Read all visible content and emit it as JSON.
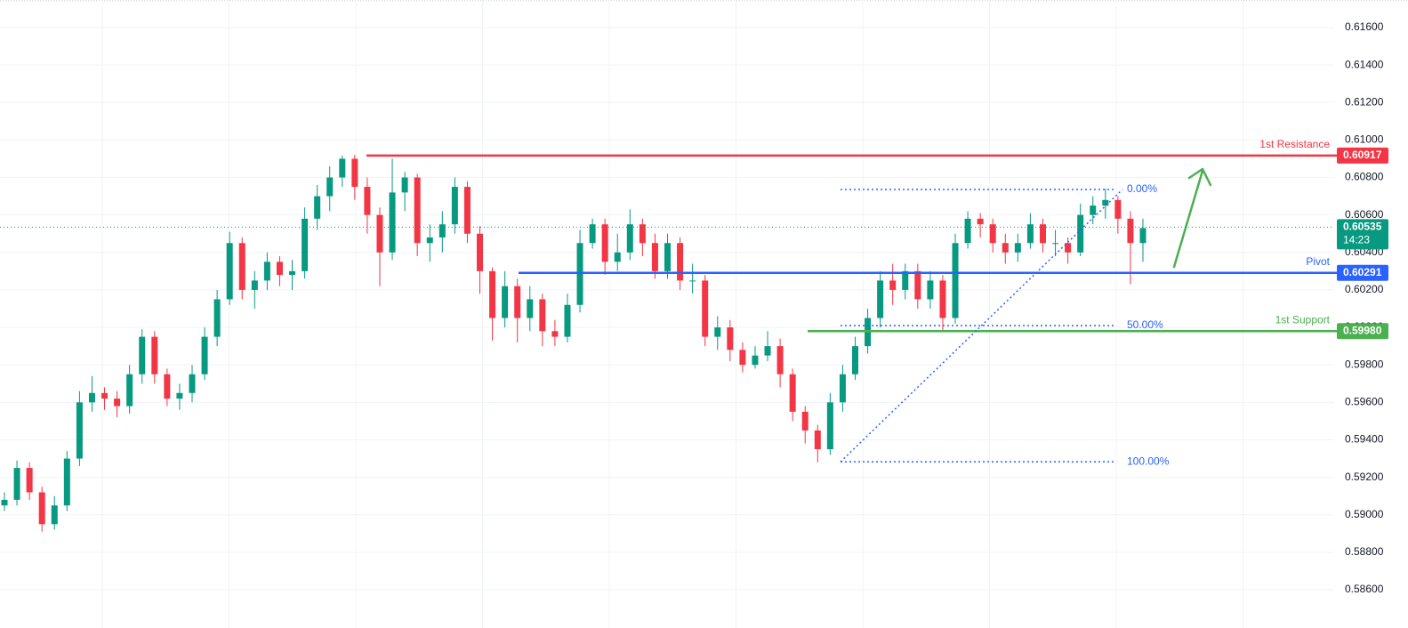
{
  "chart_data": {
    "type": "candlestick",
    "ylim": [
      0.58396,
      0.61747
    ],
    "yticks": [
      {
        "value": 0.616,
        "label": "0.61600"
      },
      {
        "value": 0.614,
        "label": "0.61400"
      },
      {
        "value": 0.612,
        "label": "0.61200"
      },
      {
        "value": 0.61,
        "label": "0.61000"
      },
      {
        "value": 0.608,
        "label": "0.60800"
      },
      {
        "value": 0.606,
        "label": "0.60600"
      },
      {
        "value": 0.604,
        "label": "0.60400"
      },
      {
        "value": 0.602,
        "label": "0.60200"
      },
      {
        "value": 0.6,
        "label": "0.60000"
      },
      {
        "value": 0.598,
        "label": "0.59800"
      },
      {
        "value": 0.596,
        "label": "0.59600"
      },
      {
        "value": 0.594,
        "label": "0.59400"
      },
      {
        "value": 0.592,
        "label": "0.59200"
      },
      {
        "value": 0.59,
        "label": "0.59000"
      },
      {
        "value": 0.588,
        "label": "0.58800"
      },
      {
        "value": 0.586,
        "label": "0.58600"
      }
    ],
    "grid": true,
    "up_color": "#089981",
    "down_color": "#f23645",
    "open": [
      0.5905,
      0.5908,
      0.5925,
      0.5912,
      0.5895,
      0.5905,
      0.593,
      0.596,
      0.5965,
      0.5962,
      0.5958,
      0.5975,
      0.5995,
      0.5975,
      0.5962,
      0.5965,
      0.5975,
      0.5995,
      0.6015,
      0.6045,
      0.602,
      0.6025,
      0.6035,
      0.6028,
      0.603,
      0.6058,
      0.607,
      0.608,
      0.609,
      0.6075,
      0.606,
      0.604,
      0.6072,
      0.608,
      0.6045,
      0.6048,
      0.6055,
      0.6075,
      0.605,
      0.603,
      0.6005,
      0.6022,
      0.6005,
      0.6015,
      0.5998,
      0.5995,
      0.6012,
      0.6045,
      0.6055,
      0.6035,
      0.604,
      0.6055,
      0.6045,
      0.603,
      0.6045,
      0.6025,
      0.6025,
      0.5995,
      0.6,
      0.5988,
      0.598,
      0.5985,
      0.599,
      0.5975,
      0.5955,
      0.5945,
      0.5935,
      0.596,
      0.5975,
      0.599,
      0.6005,
      0.6025,
      0.602,
      0.603,
      0.6015,
      0.6025,
      0.6005,
      0.6045,
      0.6058,
      0.6055,
      0.6045,
      0.604,
      0.6045,
      0.6055,
      0.6045,
      0.6045,
      0.604,
      0.606,
      0.6065,
      0.6068,
      0.6058,
      0.6045
    ],
    "high": [
      0.5912,
      0.5929,
      0.5928,
      0.5915,
      0.591,
      0.5934,
      0.5966,
      0.5974,
      0.5968,
      0.5966,
      0.598,
      0.5999,
      0.5998,
      0.5978,
      0.597,
      0.598,
      0.6,
      0.602,
      0.6051,
      0.6048,
      0.603,
      0.604,
      0.6038,
      0.6036,
      0.6064,
      0.6076,
      0.6086,
      0.60917,
      0.6092,
      0.608,
      0.6064,
      0.609,
      0.6083,
      0.6082,
      0.6055,
      0.6062,
      0.608,
      0.6078,
      0.6054,
      0.6032,
      0.603,
      0.6026,
      0.6022,
      0.6018,
      0.6004,
      0.6018,
      0.6052,
      0.6058,
      0.6058,
      0.605,
      0.6063,
      0.6058,
      0.605,
      0.605,
      0.6048,
      0.6034,
      0.6028,
      0.6006,
      0.6004,
      0.5992,
      0.599,
      0.5998,
      0.5994,
      0.5978,
      0.5958,
      0.5948,
      0.5965,
      0.598,
      0.5995,
      0.601,
      0.603,
      0.6034,
      0.6034,
      0.6034,
      0.603,
      0.6028,
      0.605,
      0.6062,
      0.6061,
      0.6058,
      0.605,
      0.605,
      0.6061,
      0.6058,
      0.6052,
      0.6048,
      0.6066,
      0.607,
      0.6074,
      0.607,
      0.6062,
      0.6058
    ],
    "low": [
      0.5902,
      0.5905,
      0.5908,
      0.5891,
      0.5892,
      0.5902,
      0.5926,
      0.5955,
      0.5956,
      0.5952,
      0.5954,
      0.597,
      0.597,
      0.5958,
      0.5956,
      0.596,
      0.5972,
      0.599,
      0.6012,
      0.6015,
      0.601,
      0.602,
      0.6022,
      0.602,
      0.6026,
      0.6052,
      0.6062,
      0.6075,
      0.6068,
      0.605,
      0.6022,
      0.6036,
      0.6062,
      0.6038,
      0.6035,
      0.604,
      0.605,
      0.6045,
      0.6018,
      0.5993,
      0.6,
      0.5992,
      0.5998,
      0.599,
      0.599,
      0.5992,
      0.6008,
      0.6042,
      0.6028,
      0.603,
      0.6036,
      0.6038,
      0.6026,
      0.6026,
      0.602,
      0.6018,
      0.599,
      0.5988,
      0.5982,
      0.5976,
      0.5978,
      0.5982,
      0.5968,
      0.595,
      0.5938,
      0.5928,
      0.5932,
      0.5955,
      0.5972,
      0.5986,
      0.6,
      0.6012,
      0.6015,
      0.601,
      0.601,
      0.5998,
      0.6002,
      0.6042,
      0.6048,
      0.604,
      0.6034,
      0.6035,
      0.6042,
      0.604,
      0.6038,
      0.6034,
      0.6038,
      0.6055,
      0.6058,
      0.605,
      0.6023,
      0.6035
    ],
    "close": [
      0.5908,
      0.5925,
      0.5912,
      0.5895,
      0.5905,
      0.593,
      0.596,
      0.5965,
      0.5962,
      0.5958,
      0.5975,
      0.5995,
      0.5975,
      0.5962,
      0.5965,
      0.5975,
      0.5995,
      0.6015,
      0.6045,
      0.602,
      0.6025,
      0.6035,
      0.6028,
      0.603,
      0.6058,
      0.607,
      0.608,
      0.609,
      0.6075,
      0.606,
      0.604,
      0.6072,
      0.608,
      0.6045,
      0.6048,
      0.6055,
      0.6075,
      0.605,
      0.603,
      0.6005,
      0.6022,
      0.6005,
      0.6015,
      0.5998,
      0.5995,
      0.6012,
      0.6045,
      0.6055,
      0.6035,
      0.604,
      0.6055,
      0.6045,
      0.603,
      0.6045,
      0.6025,
      0.6025,
      0.5995,
      0.6,
      0.5988,
      0.598,
      0.5985,
      0.599,
      0.5975,
      0.5955,
      0.5945,
      0.5935,
      0.596,
      0.5975,
      0.599,
      0.6005,
      0.6025,
      0.602,
      0.603,
      0.6015,
      0.6025,
      0.6005,
      0.6045,
      0.6058,
      0.6055,
      0.6045,
      0.604,
      0.6045,
      0.6055,
      0.6045,
      0.6045,
      0.604,
      0.606,
      0.6065,
      0.6068,
      0.6058,
      0.6045,
      0.6053
    ],
    "levels": [
      {
        "name": "1st Resistance",
        "value": 0.60917,
        "label": "0.60917",
        "color": "#f23645"
      },
      {
        "name": "Pivot",
        "value": 0.60291,
        "label": "0.60291",
        "color": "#2962ff"
      },
      {
        "name": "1st Support",
        "value": 0.5998,
        "label": "0.59980",
        "color": "#4caf50"
      }
    ],
    "current_price": {
      "value": 0.60535,
      "countdown": "14:23",
      "color": "#089981"
    },
    "fib": {
      "high": 0.60736,
      "low": 0.59283,
      "color": "#2962ff",
      "levels": [
        {
          "value": 0,
          "label": "0.00%"
        },
        {
          "value": 50,
          "label": "50.00%"
        },
        {
          "value": 100,
          "label": "100.00%"
        }
      ]
    }
  }
}
